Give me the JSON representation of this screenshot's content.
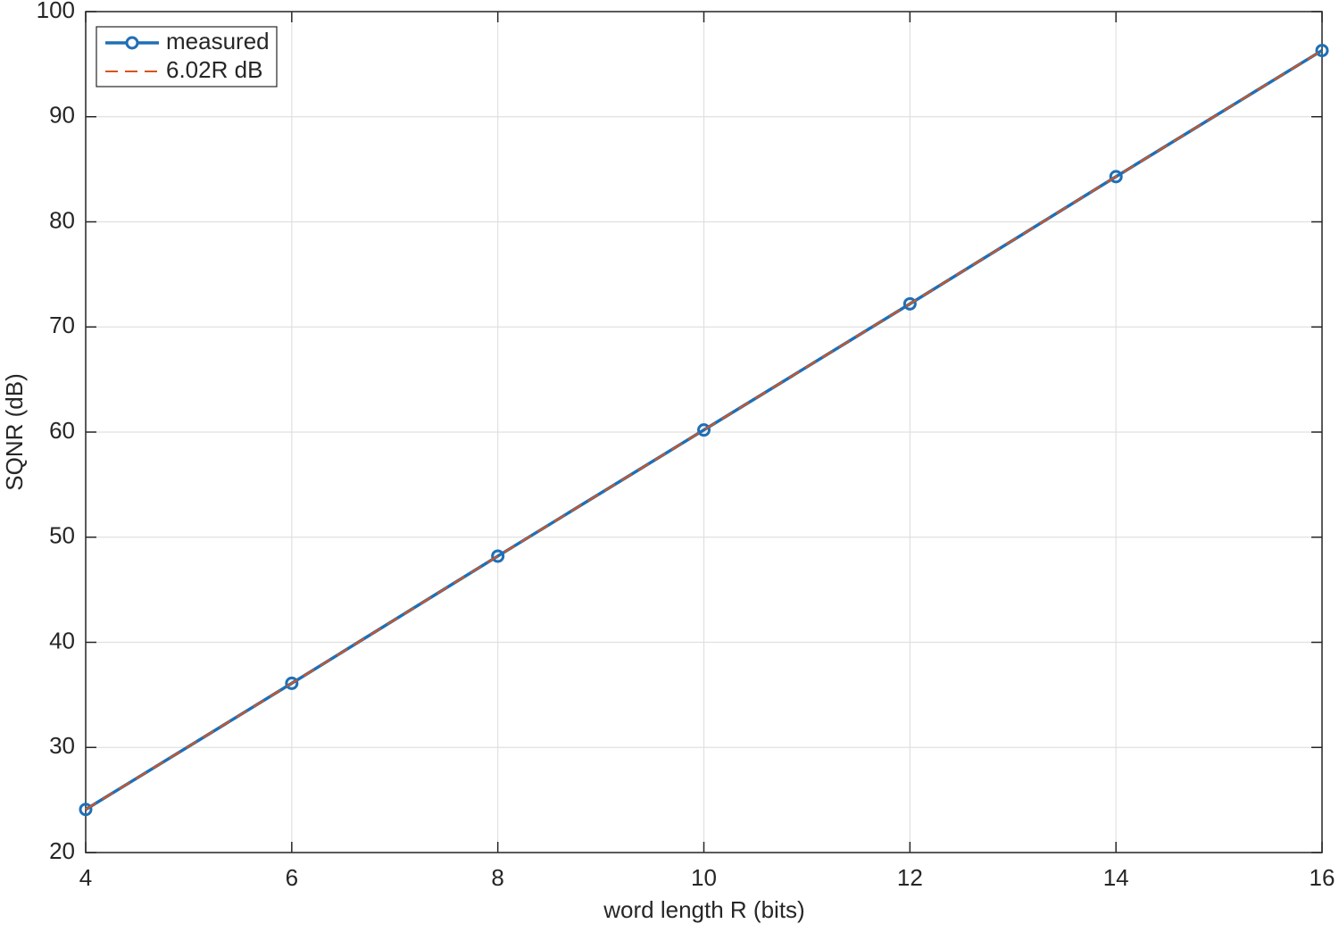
{
  "chart_data": {
    "type": "line",
    "x": [
      4,
      6,
      8,
      10,
      12,
      14,
      16
    ],
    "series": [
      {
        "name": "measured",
        "color": "#1f6fb5",
        "marker": "circle",
        "dash": false,
        "values": [
          24.1,
          36.1,
          48.2,
          60.2,
          72.2,
          84.3,
          96.3
        ]
      },
      {
        "name": "6.02R dB",
        "color": "#d95319",
        "marker": "none",
        "dash": true,
        "values": [
          24.1,
          36.1,
          48.2,
          60.2,
          72.2,
          84.3,
          96.3
        ]
      }
    ],
    "xlabel": "word length R (bits)",
    "ylabel": "SQNR (dB)",
    "xlim": [
      4,
      16
    ],
    "xticks": [
      4,
      6,
      8,
      10,
      12,
      14,
      16
    ],
    "ylim": [
      20,
      100
    ],
    "yticks": [
      20,
      30,
      40,
      50,
      60,
      70,
      80,
      90,
      100
    ],
    "grid": true,
    "legend": "top-left"
  }
}
